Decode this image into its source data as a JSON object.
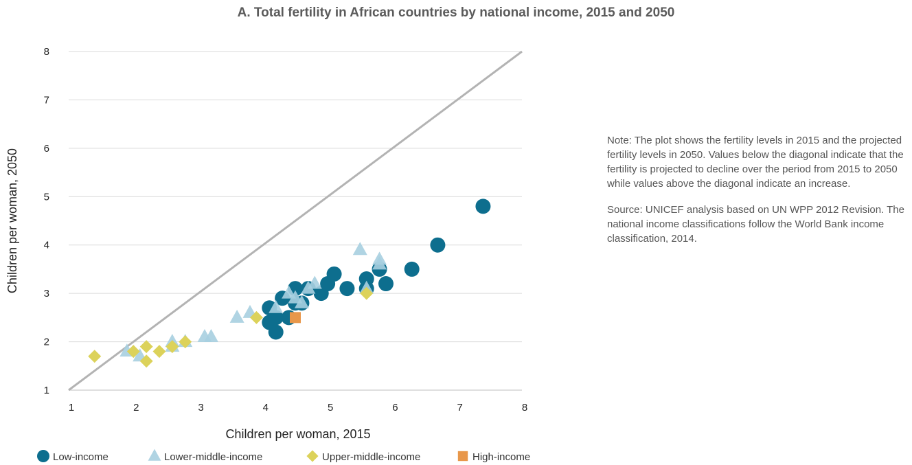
{
  "chart_data": {
    "type": "scatter",
    "title": "A.    Total fertility in African countries by national income, 2015 and 2050",
    "xlabel": "Children per woman, 2015",
    "ylabel": "Children per woman, 2050",
    "xlim": [
      1,
      8
    ],
    "ylim": [
      1,
      8
    ],
    "xticks": [
      "1",
      "2",
      "3",
      "4",
      "5",
      "6",
      "7",
      "8"
    ],
    "yticks": [
      "1",
      "2",
      "3",
      "4",
      "5",
      "6",
      "7",
      "8"
    ],
    "grid": "horizontal",
    "diagonal": true,
    "legend_position": "bottom",
    "series": [
      {
        "name": "Low-income",
        "color": "#0d6e8e",
        "marker": "circle",
        "points": [
          [
            4.1,
            2.7
          ],
          [
            4.1,
            2.4
          ],
          [
            4.2,
            2.5
          ],
          [
            4.2,
            2.2
          ],
          [
            4.3,
            2.9
          ],
          [
            4.4,
            2.5
          ],
          [
            4.5,
            3.1
          ],
          [
            4.5,
            2.8
          ],
          [
            4.6,
            2.8
          ],
          [
            4.7,
            3.1
          ],
          [
            4.9,
            3.0
          ],
          [
            5.0,
            3.2
          ],
          [
            5.1,
            3.4
          ],
          [
            5.3,
            3.1
          ],
          [
            5.6,
            3.3
          ],
          [
            5.6,
            3.1
          ],
          [
            5.8,
            3.5
          ],
          [
            5.9,
            3.2
          ],
          [
            6.3,
            3.5
          ],
          [
            6.7,
            4.0
          ],
          [
            7.4,
            4.8
          ]
        ]
      },
      {
        "name": "Lower-middle-income",
        "color": "#a7cfe0",
        "marker": "triangle",
        "points": [
          [
            1.9,
            1.8
          ],
          [
            2.1,
            1.7
          ],
          [
            2.6,
            2.0
          ],
          [
            2.6,
            1.9
          ],
          [
            2.8,
            2.0
          ],
          [
            3.1,
            2.1
          ],
          [
            3.2,
            2.1
          ],
          [
            3.6,
            2.5
          ],
          [
            3.8,
            2.6
          ],
          [
            4.2,
            2.7
          ],
          [
            4.4,
            3.0
          ],
          [
            4.5,
            2.9
          ],
          [
            4.6,
            2.8
          ],
          [
            4.7,
            3.1
          ],
          [
            4.8,
            3.2
          ],
          [
            5.5,
            3.9
          ],
          [
            5.6,
            3.1
          ],
          [
            5.8,
            3.7
          ],
          [
            5.8,
            3.6
          ]
        ]
      },
      {
        "name": "Upper-middle-income",
        "color": "#dcd25a",
        "marker": "diamond",
        "points": [
          [
            1.4,
            1.7
          ],
          [
            2.0,
            1.8
          ],
          [
            2.2,
            1.9
          ],
          [
            2.2,
            1.6
          ],
          [
            2.4,
            1.8
          ],
          [
            2.6,
            1.9
          ],
          [
            2.8,
            2.0
          ],
          [
            3.9,
            2.5
          ],
          [
            5.6,
            3.0
          ]
        ]
      },
      {
        "name": "High-income",
        "color": "#e8974a",
        "marker": "square",
        "points": [
          [
            4.5,
            2.5
          ]
        ]
      }
    ]
  },
  "note": {
    "text": "Note: The plot shows the fertility levels in 2015 and the projected fertility levels in 2050. Values below the diagonal indicate that the fertility is projected to decline over the period from 2015 to 2050 while values above the diagonal indicate an increase.",
    "source": "Source: UNICEF analysis based on UN WPP 2012 Revision. The national income classifications follow the World Bank income classification, 2014."
  }
}
